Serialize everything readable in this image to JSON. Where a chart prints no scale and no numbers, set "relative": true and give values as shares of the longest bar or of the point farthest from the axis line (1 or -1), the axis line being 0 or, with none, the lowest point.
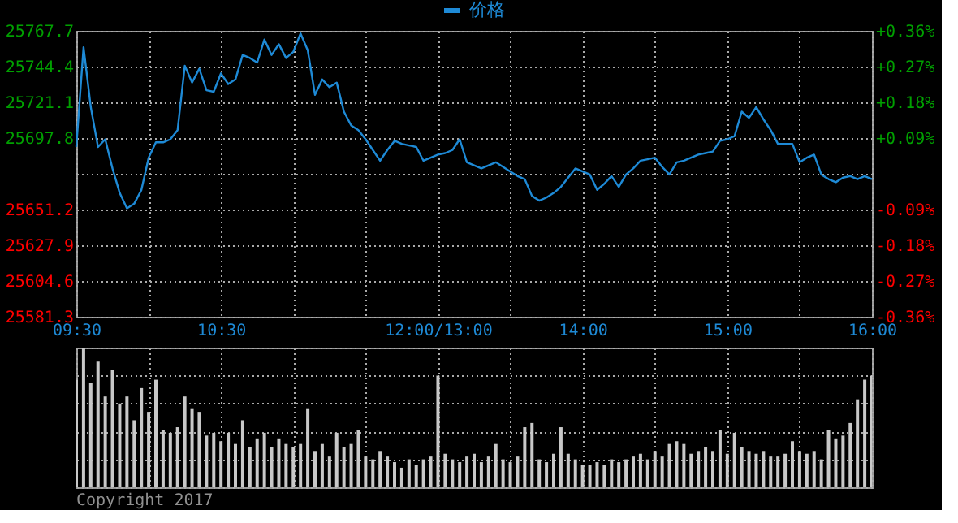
{
  "chart_data": [
    {
      "type": "line",
      "categories": [
        "09:30",
        null,
        null,
        null,
        null,
        null,
        null,
        null,
        null,
        null,
        null,
        null,
        null,
        null,
        null,
        null,
        null,
        null,
        null,
        null,
        "10:30",
        null,
        null,
        null,
        null,
        null,
        null,
        null,
        null,
        null,
        null,
        null,
        null,
        null,
        null,
        null,
        null,
        null,
        null,
        null,
        null,
        null,
        null,
        null,
        null,
        null,
        null,
        null,
        null,
        null,
        "12:00/13:00",
        null,
        null,
        null,
        null,
        null,
        null,
        null,
        null,
        null,
        null,
        null,
        null,
        null,
        null,
        null,
        null,
        null,
        null,
        null,
        "14:00",
        null,
        null,
        null,
        null,
        null,
        null,
        null,
        null,
        null,
        null,
        null,
        null,
        null,
        null,
        null,
        null,
        null,
        null,
        null,
        "15:00",
        null,
        null,
        null,
        null,
        null,
        null,
        null,
        null,
        null,
        null,
        null,
        null,
        null,
        null,
        null,
        null,
        null,
        null,
        null,
        "16:00"
      ],
      "series": [
        {
          "name": "价格",
          "color": "#1e8ad6",
          "values": [
            25692,
            25757,
            25718,
            25692,
            25697,
            25678,
            25662,
            25652,
            25655,
            25664,
            25685,
            25695,
            25695,
            25697,
            25703,
            25745,
            25734,
            25743,
            25729,
            25728,
            25740,
            25733,
            25736,
            25752,
            25750,
            25747,
            25762,
            25752,
            25759,
            25750,
            25754,
            25766,
            25755,
            25726,
            25736,
            25731,
            25734,
            25715,
            25706,
            25703,
            25697,
            25690,
            25683,
            25690,
            25696,
            25694,
            25693,
            25692,
            25683,
            25685,
            25687,
            25688,
            25690,
            25697,
            25682,
            25680,
            25678,
            25680,
            25682,
            25679,
            25676,
            25673,
            25671,
            25660,
            25657,
            25659,
            25662,
            25666,
            25672,
            25678,
            25676,
            25674,
            25664,
            25668,
            25673,
            25666,
            25674,
            25678,
            25683,
            25684,
            25685,
            25679,
            25674,
            25682,
            25683,
            25685,
            25687,
            25688,
            25689,
            25696,
            25697,
            25699,
            25715,
            25711,
            25718,
            25710,
            25703,
            25694,
            25694,
            25694,
            25682,
            25685,
            25687,
            25674,
            25671,
            25669,
            25672,
            25673,
            25671,
            25673,
            25671
          ]
        }
      ],
      "ylim": [
        25581.3,
        25767.7
      ],
      "yticks": [
        {
          "value": 25581.3,
          "label": "25581.3"
        },
        {
          "value": 25604.6,
          "label": "25604.6"
        },
        {
          "value": 25627.9,
          "label": "25627.9"
        },
        {
          "value": 25651.2,
          "label": "25651.2"
        },
        {
          "value": 25674.5,
          "label": null
        },
        {
          "value": 25697.8,
          "label": "25697.8"
        },
        {
          "value": 25721.1,
          "label": "25721.1"
        },
        {
          "value": 25744.4,
          "label": "25744.4"
        },
        {
          "value": 25767.7,
          "label": "25767.7"
        }
      ],
      "y2lim": [
        -0.36,
        0.36
      ],
      "y2ticks": [
        {
          "value": -0.36,
          "label": "-0.36%"
        },
        {
          "value": -0.27,
          "label": "-0.27%"
        },
        {
          "value": -0.18,
          "label": "-0.18%"
        },
        {
          "value": -0.09,
          "label": "-0.09%"
        },
        {
          "value": 0,
          "label": null
        },
        {
          "value": 0.09,
          "label": "+0.09%"
        },
        {
          "value": 0.18,
          "label": "+0.18%"
        },
        {
          "value": 0.27,
          "label": "+0.27%"
        },
        {
          "value": 0.36,
          "label": "+0.36%"
        }
      ],
      "grid": true,
      "legend": "top",
      "marker": "none",
      "line_style": "solid"
    },
    {
      "type": "bar",
      "relative": true,
      "categories": [
        null,
        null,
        null,
        null,
        null,
        null,
        null,
        null,
        null,
        null,
        null,
        null,
        null,
        null,
        null,
        null,
        null,
        null,
        null,
        null,
        null,
        null,
        null,
        null,
        null,
        null,
        null,
        null,
        null,
        null,
        null,
        null,
        null,
        null,
        null,
        null,
        null,
        null,
        null,
        null,
        null,
        null,
        null,
        null,
        null,
        null,
        null,
        null,
        null,
        null,
        null,
        null,
        null,
        null,
        null,
        null,
        null,
        null,
        null,
        null,
        null,
        null,
        null,
        null,
        null,
        null,
        null,
        null,
        null,
        null,
        null,
        null,
        null,
        null,
        null,
        null,
        null,
        null,
        null,
        null,
        null,
        null,
        null,
        null,
        null,
        null,
        null,
        null,
        null,
        null,
        null,
        null,
        null,
        null,
        null,
        null,
        null,
        null,
        null,
        null,
        null,
        null,
        null,
        null,
        null,
        null,
        null,
        null,
        null,
        null,
        null
      ],
      "values": [
        0.77,
        1,
        0.75,
        0.9,
        0.65,
        0.84,
        0.6,
        0.65,
        0.48,
        0.71,
        0.54,
        0.77,
        0.41,
        0.39,
        0.43,
        0.65,
        0.56,
        0.54,
        0.37,
        0.39,
        0.33,
        0.39,
        0.31,
        0.48,
        0.29,
        0.35,
        0.39,
        0.29,
        0.35,
        0.31,
        0.29,
        0.31,
        0.56,
        0.26,
        0.31,
        0.22,
        0.39,
        0.29,
        0.31,
        0.41,
        0.22,
        0.2,
        0.26,
        0.22,
        0.18,
        0.14,
        0.2,
        0.16,
        0.2,
        0.22,
        0.8,
        0.24,
        0.2,
        0.18,
        0.22,
        0.24,
        0.18,
        0.22,
        0.31,
        0.2,
        0.18,
        0.22,
        0.43,
        0.46,
        0.2,
        0.18,
        0.24,
        0.43,
        0.24,
        0.2,
        0.16,
        0.16,
        0.18,
        0.16,
        0.2,
        0.18,
        0.2,
        0.22,
        0.24,
        0.2,
        0.26,
        0.22,
        0.31,
        0.33,
        0.31,
        0.24,
        0.26,
        0.29,
        0.26,
        0.41,
        0.24,
        0.39,
        0.29,
        0.26,
        0.24,
        0.26,
        0.22,
        0.22,
        0.24,
        0.33,
        0.26,
        0.24,
        0.26,
        0.2,
        0.41,
        0.35,
        0.37,
        0.46,
        0.63,
        0.77,
        0.8
      ],
      "color": "#c8c8c8",
      "tick_labels": false,
      "grid": true,
      "annotations": [
        "Copyright 2017"
      ]
    }
  ]
}
